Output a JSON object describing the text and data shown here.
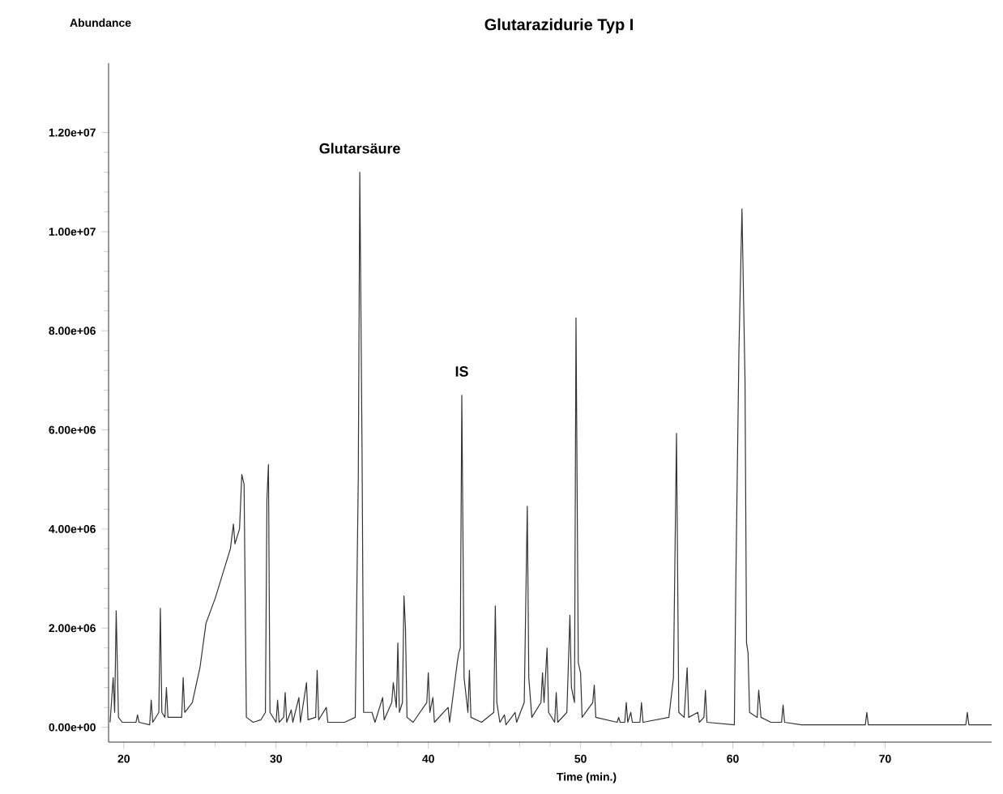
{
  "chart_data": {
    "type": "line",
    "title": "Glutarazidurie Typ I",
    "xlabel": "Time (min.)",
    "ylabel": "Abundance",
    "color": "#333333",
    "xlim": [
      19,
      77
    ],
    "ylim": [
      -300000,
      13400000
    ],
    "xticks": [
      20,
      30,
      40,
      50,
      60,
      70
    ],
    "yticks": [
      {
        "value": 0,
        "label": "0.00e+00"
      },
      {
        "value": 2000000,
        "label": "2.00e+06"
      },
      {
        "value": 4000000,
        "label": "4.00e+06"
      },
      {
        "value": 6000000,
        "label": "6.00e+06"
      },
      {
        "value": 8000000,
        "label": "8.00e+06"
      },
      {
        "value": 10000000,
        "label": "1.00e+07"
      },
      {
        "value": 12000000,
        "label": "1.20e+07"
      }
    ],
    "annotations": [
      {
        "text": "Glutarsäure",
        "x": 35.5,
        "y": 11200000
      },
      {
        "text": "IS",
        "x": 42.2,
        "y": 6700000
      }
    ],
    "x": [
      19.1,
      19.3,
      19.4,
      19.5,
      19.65,
      19.9,
      20.8,
      20.9,
      21.0,
      21.7,
      21.8,
      21.9,
      22.3,
      22.4,
      22.5,
      22.7,
      22.8,
      22.9,
      23.8,
      23.9,
      24.0,
      24.5,
      25.0,
      25.4,
      26.0,
      26.6,
      27.0,
      27.2,
      27.3,
      27.6,
      27.75,
      27.9,
      28.05,
      28.5,
      29.0,
      29.3,
      29.4,
      29.5,
      29.6,
      30.0,
      30.1,
      30.2,
      30.5,
      30.6,
      30.7,
      31.0,
      31.1,
      31.5,
      31.6,
      32.0,
      32.1,
      32.6,
      32.7,
      32.8,
      33.3,
      33.4,
      34.5,
      35.2,
      35.4,
      35.5,
      35.65,
      35.75,
      36.3,
      36.5,
      37.0,
      37.1,
      37.6,
      37.7,
      37.9,
      38.0,
      38.1,
      38.3,
      38.4,
      38.5,
      38.6,
      39.0,
      39.9,
      40.0,
      40.1,
      40.3,
      40.4,
      41.3,
      41.4,
      41.9,
      42.0,
      42.1,
      42.2,
      42.35,
      42.6,
      42.7,
      42.8,
      43.5,
      44.3,
      44.4,
      44.5,
      44.7,
      45.0,
      45.1,
      45.7,
      45.8,
      46.3,
      46.5,
      46.6,
      46.8,
      47.4,
      47.5,
      47.6,
      47.8,
      47.9,
      48.3,
      48.4,
      48.5,
      49.1,
      49.3,
      49.4,
      49.6,
      49.7,
      49.85,
      50.0,
      50.1,
      50.8,
      50.9,
      51.0,
      52.4,
      52.5,
      52.6,
      52.9,
      53.0,
      53.1,
      53.3,
      53.4,
      53.9,
      54.0,
      54.1,
      55.8,
      56.1,
      56.3,
      56.45,
      56.8,
      57.0,
      57.1,
      57.7,
      57.8,
      58.1,
      58.2,
      58.3,
      60.1,
      60.2,
      60.4,
      60.6,
      60.8,
      60.9,
      61.0,
      61.1,
      61.6,
      61.7,
      61.85,
      62.5,
      63.2,
      63.3,
      63.4,
      64.5,
      68.7,
      68.8,
      68.9,
      75.3,
      75.4,
      75.5,
      77.0
    ],
    "values": [
      100000,
      1000000,
      300000,
      2350000,
      200000,
      100000,
      100000,
      250000,
      100000,
      50000,
      550000,
      100000,
      300000,
      2400000,
      300000,
      200000,
      800000,
      200000,
      200000,
      1000000,
      300000,
      500000,
      1200000,
      2100000,
      2600000,
      3200000,
      3600000,
      4100000,
      3700000,
      4000000,
      5100000,
      4900000,
      200000,
      100000,
      150000,
      300000,
      4600000,
      5300000,
      300000,
      100000,
      550000,
      100000,
      200000,
      700000,
      100000,
      350000,
      100000,
      600000,
      100000,
      900000,
      150000,
      200000,
      1150000,
      150000,
      400000,
      100000,
      100000,
      200000,
      5000000,
      11200000,
      5500000,
      300000,
      300000,
      100000,
      600000,
      150000,
      500000,
      900000,
      400000,
      1700000,
      300000,
      500000,
      2650000,
      2000000,
      200000,
      100000,
      500000,
      1100000,
      300000,
      600000,
      100000,
      400000,
      100000,
      1300000,
      1500000,
      1600000,
      6700000,
      1000000,
      300000,
      1150000,
      200000,
      100000,
      300000,
      2450000,
      500000,
      100000,
      250000,
      50000,
      300000,
      100000,
      500000,
      4460000,
      1000000,
      200000,
      500000,
      1100000,
      500000,
      1600000,
      300000,
      100000,
      700000,
      100000,
      300000,
      2260000,
      800000,
      500000,
      8260000,
      1300000,
      1100000,
      200000,
      500000,
      850000,
      200000,
      100000,
      200000,
      100000,
      100000,
      500000,
      100000,
      300000,
      100000,
      100000,
      500000,
      100000,
      200000,
      1000000,
      5930000,
      300000,
      200000,
      1200000,
      200000,
      300000,
      100000,
      200000,
      750000,
      100000,
      50000,
      3000000,
      7600000,
      10460000,
      7000000,
      1700000,
      1500000,
      300000,
      200000,
      750000,
      200000,
      100000,
      100000,
      450000,
      100000,
      50000,
      50000,
      300000,
      50000,
      50000,
      300000,
      50000,
      50000
    ]
  }
}
